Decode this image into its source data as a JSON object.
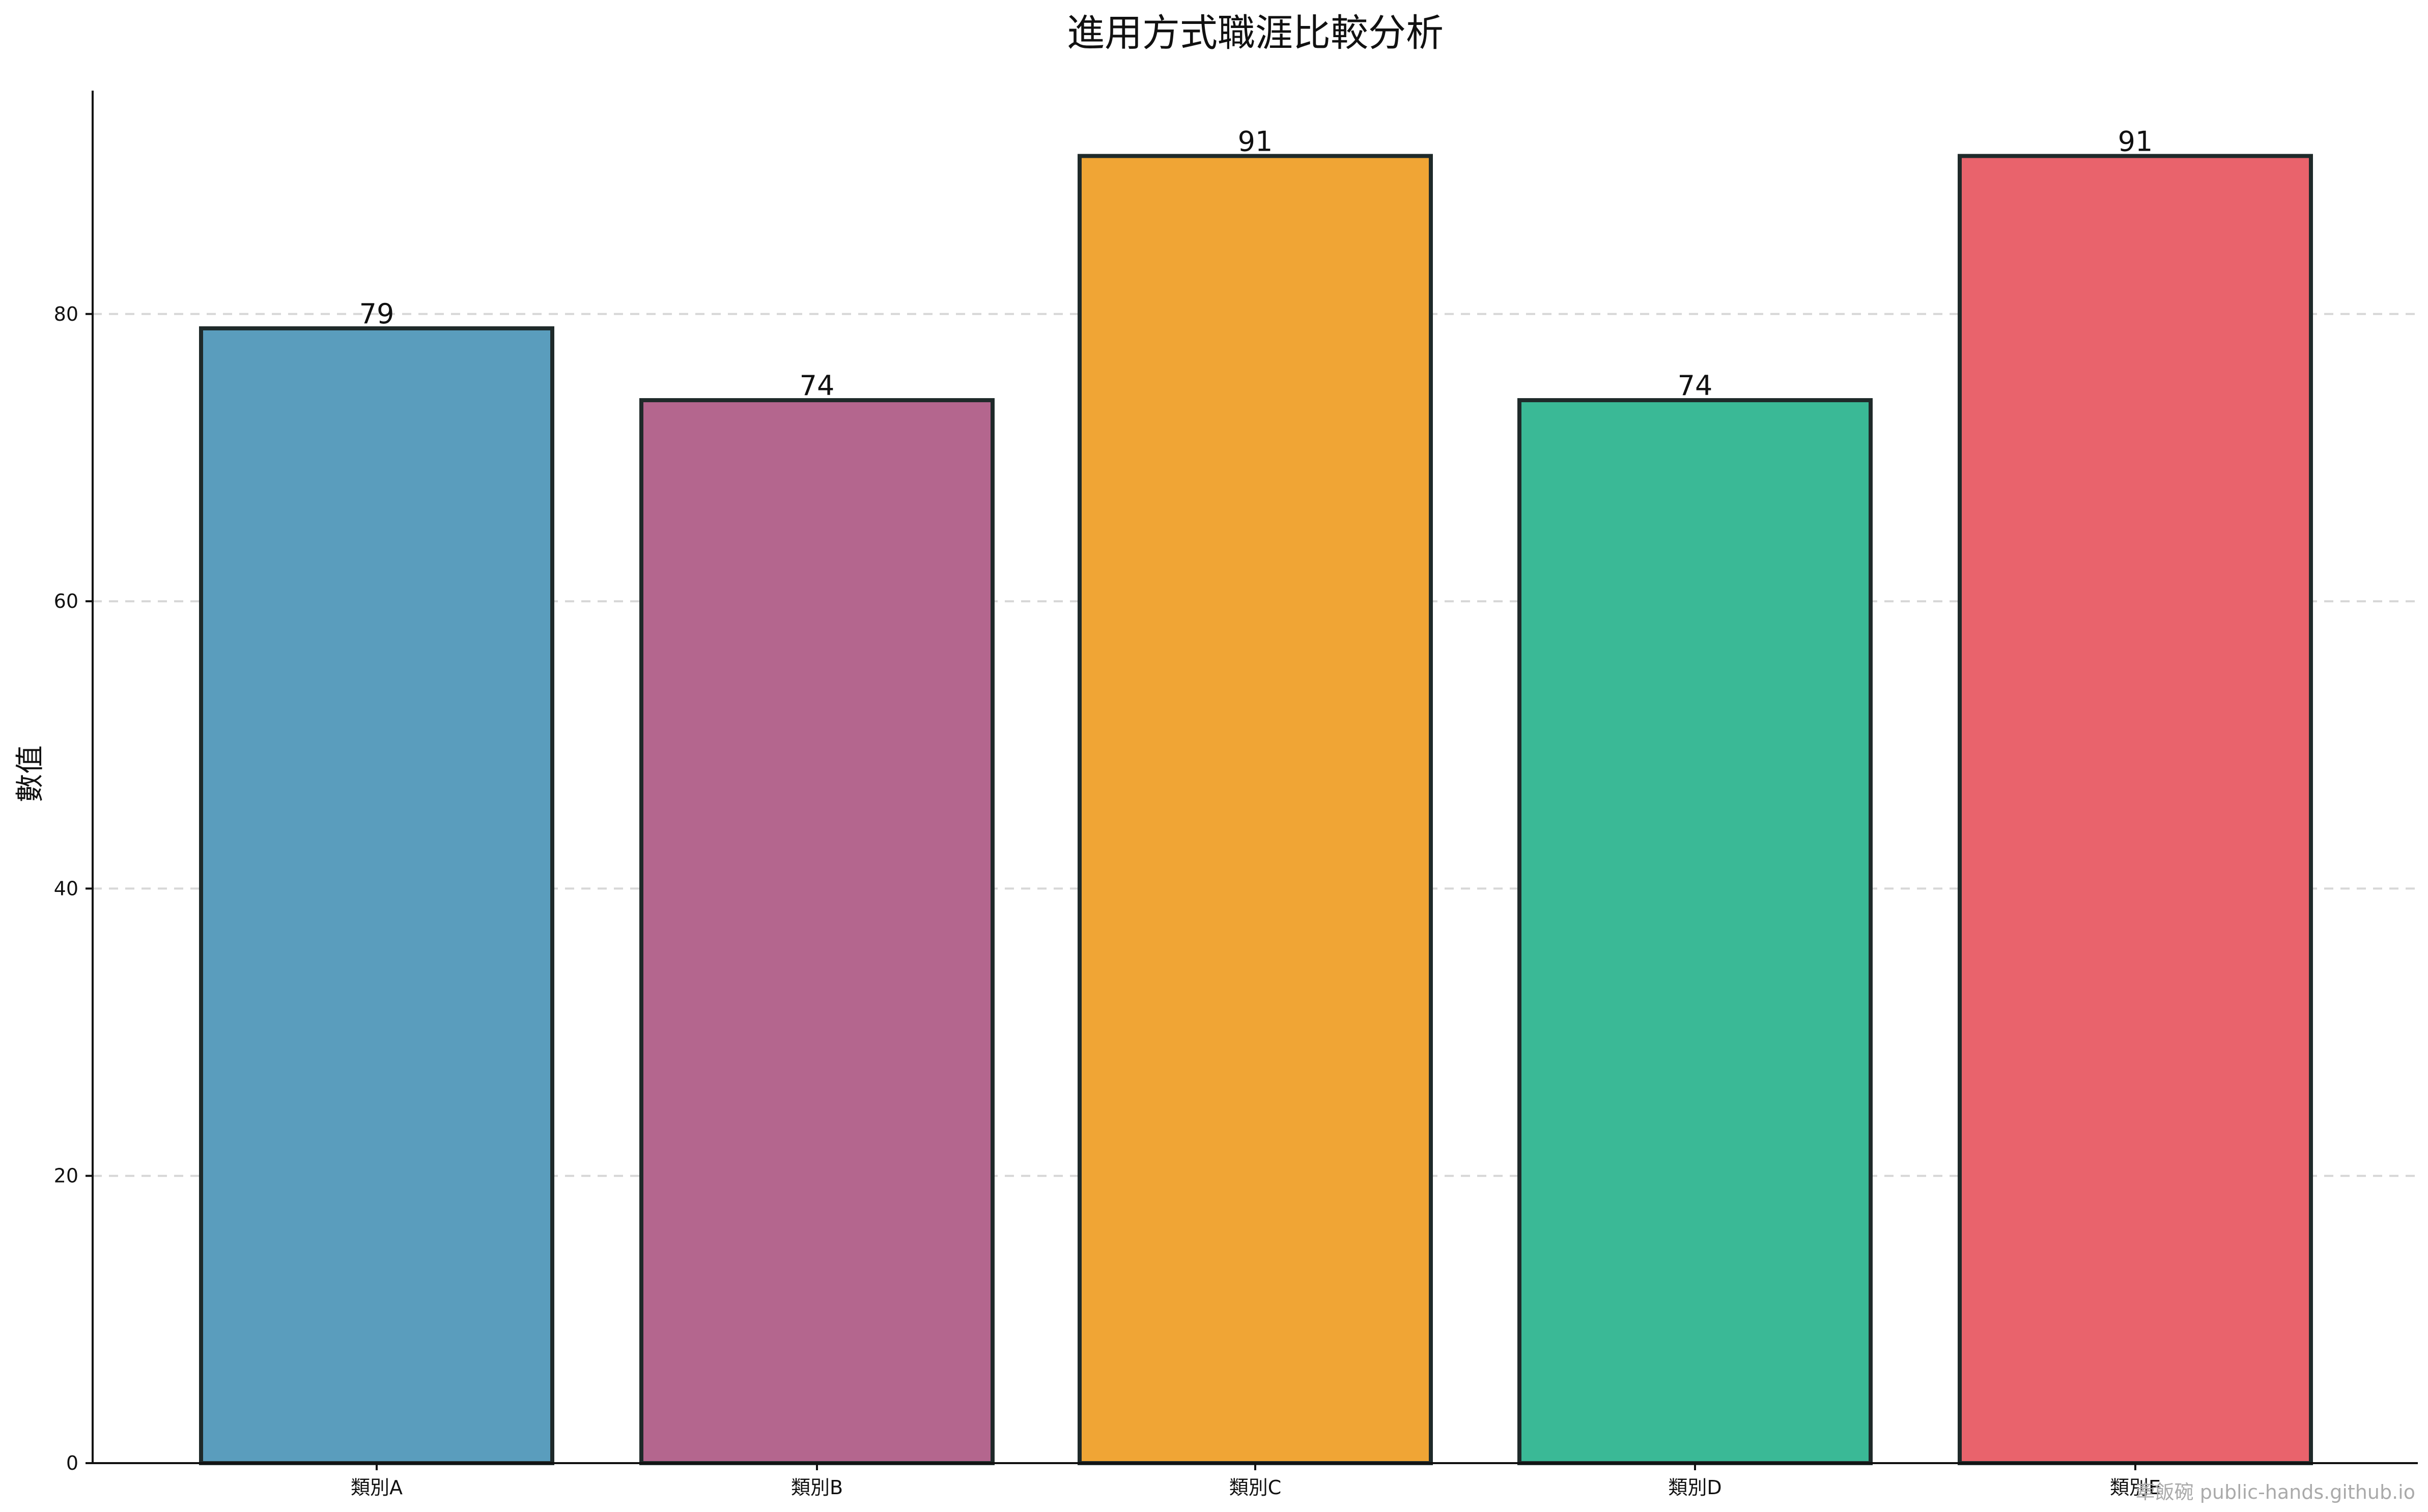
{
  "chart_data": {
    "type": "bar",
    "title": "進用方式職涯比較分析",
    "xlabel": "",
    "ylabel": "數值",
    "categories": [
      "類別A",
      "類別B",
      "類別C",
      "類別D",
      "類別E"
    ],
    "values": [
      79,
      74,
      91,
      74,
      91
    ],
    "ylim": [
      0,
      95.55
    ],
    "yticks": [
      0,
      20,
      40,
      60,
      80
    ],
    "grid": "y-dashed",
    "colors": [
      "#5A9DBD",
      "#B4668E",
      "#F0A535",
      "#3AB996",
      "#E9636C"
    ],
    "bar_edge_color": "#1F2A2A"
  },
  "watermark": "牽飯碗 public-hands.github.io"
}
